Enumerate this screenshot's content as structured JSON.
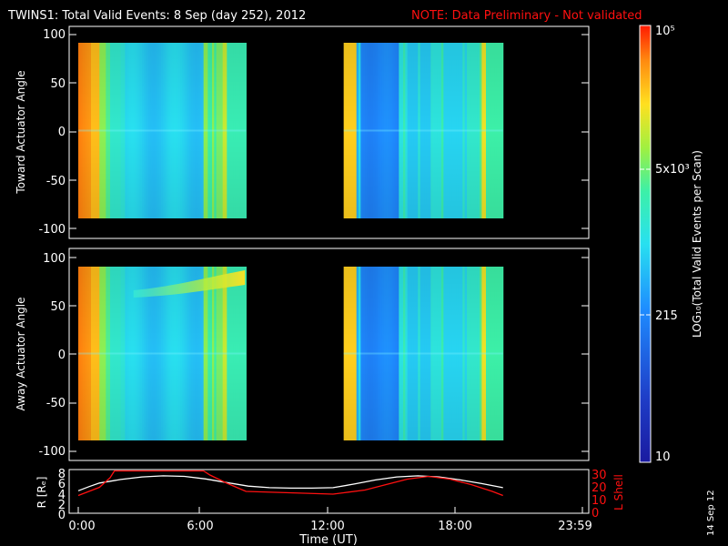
{
  "header": {
    "title": "TWINS1: Total Valid Events:  8 Sep (day 252), 2012",
    "note": "NOTE: Data Preliminary - Not validated"
  },
  "panels": {
    "top": {
      "ylabel": "Toward Actuator Angle"
    },
    "middle": {
      "ylabel": "Away Actuator Angle"
    },
    "bottom": {
      "ylabel_left": "R [Rₑ]",
      "ylabel_right": "L Shell"
    }
  },
  "colorbar": {
    "label": "LOG₁₀(Total Valid Events per Scan)",
    "tick_labels": [
      "10⁵",
      "5x10³",
      "215",
      "10"
    ]
  },
  "xaxis": {
    "label": "Time (UT)",
    "ticks": [
      "0:00",
      "6:00",
      "12:00",
      "18:00",
      "23:59"
    ]
  },
  "footer": {
    "date_stamp": "14 Sep 12"
  },
  "colors": {
    "note": "#ff1010",
    "l_shell": "#ff1010",
    "r_line": "#ffffff"
  },
  "chart_data": [
    {
      "type": "heatmap",
      "panel": "top",
      "ylabel": "Toward Actuator Angle",
      "ylim": [
        -110,
        110
      ],
      "yticks": [
        "100",
        "50",
        "0",
        "-50",
        "-100"
      ],
      "xlim_hours": [
        0,
        24
      ],
      "coverage_hours": [
        [
          0.0,
          7.9
        ],
        [
          12.5,
          20.0
        ]
      ],
      "angle_range_deg": [
        -90,
        90
      ],
      "color_scale": "log",
      "color_range": [
        10,
        100000
      ]
    },
    {
      "type": "heatmap",
      "panel": "middle",
      "ylabel": "Away Actuator Angle",
      "ylim": [
        -110,
        110
      ],
      "yticks": [
        "100",
        "50",
        "0",
        "-50",
        "-100"
      ],
      "xlim_hours": [
        0,
        24
      ],
      "coverage_hours": [
        [
          0.0,
          7.9
        ],
        [
          12.5,
          20.0
        ]
      ],
      "angle_range_deg": [
        -90,
        90
      ],
      "color_scale": "log",
      "color_range": [
        10,
        100000
      ]
    },
    {
      "type": "line",
      "panel": "bottom",
      "xlim_hours": [
        0,
        24
      ],
      "left_axis": {
        "label": "R [Rₑ]",
        "ylim": [
          0,
          8
        ],
        "ticks": [
          "8",
          "6",
          "4",
          "2",
          "0"
        ]
      },
      "right_axis": {
        "label": "L Shell",
        "ylim": [
          0,
          30
        ],
        "ticks": [
          "30",
          "20",
          "10",
          "0"
        ]
      },
      "series": [
        {
          "name": "R [Rₑ]",
          "axis": "left",
          "x": [
            0.0,
            0.5,
            1.0,
            2.0,
            3.0,
            4.0,
            5.0,
            6.0,
            7.0,
            8.0,
            9.0,
            10.0,
            11.0,
            12.0,
            13.0,
            14.0,
            15.0,
            16.0,
            17.0,
            18.0,
            19.0,
            20.0
          ],
          "y": [
            4.4,
            5.2,
            5.9,
            6.6,
            7.1,
            7.3,
            7.2,
            6.7,
            6.0,
            5.3,
            5.0,
            4.9,
            4.9,
            5.0,
            5.7,
            6.5,
            7.1,
            7.3,
            7.1,
            6.5,
            5.8,
            5.0
          ]
        },
        {
          "name": "L Shell",
          "axis": "right",
          "x": [
            0.0,
            0.5,
            1.0,
            1.5,
            1.7,
            5.9,
            6.2,
            7.0,
            7.9,
            12.0,
            12.5,
            13.5,
            14.5,
            15.5,
            16.5,
            17.5,
            18.5,
            19.5,
            20.0
          ],
          "y": [
            13,
            16,
            19,
            26,
            31,
            31,
            28,
            22,
            16,
            14,
            15,
            17,
            21,
            25,
            27,
            25,
            21,
            16,
            13
          ]
        }
      ]
    }
  ]
}
